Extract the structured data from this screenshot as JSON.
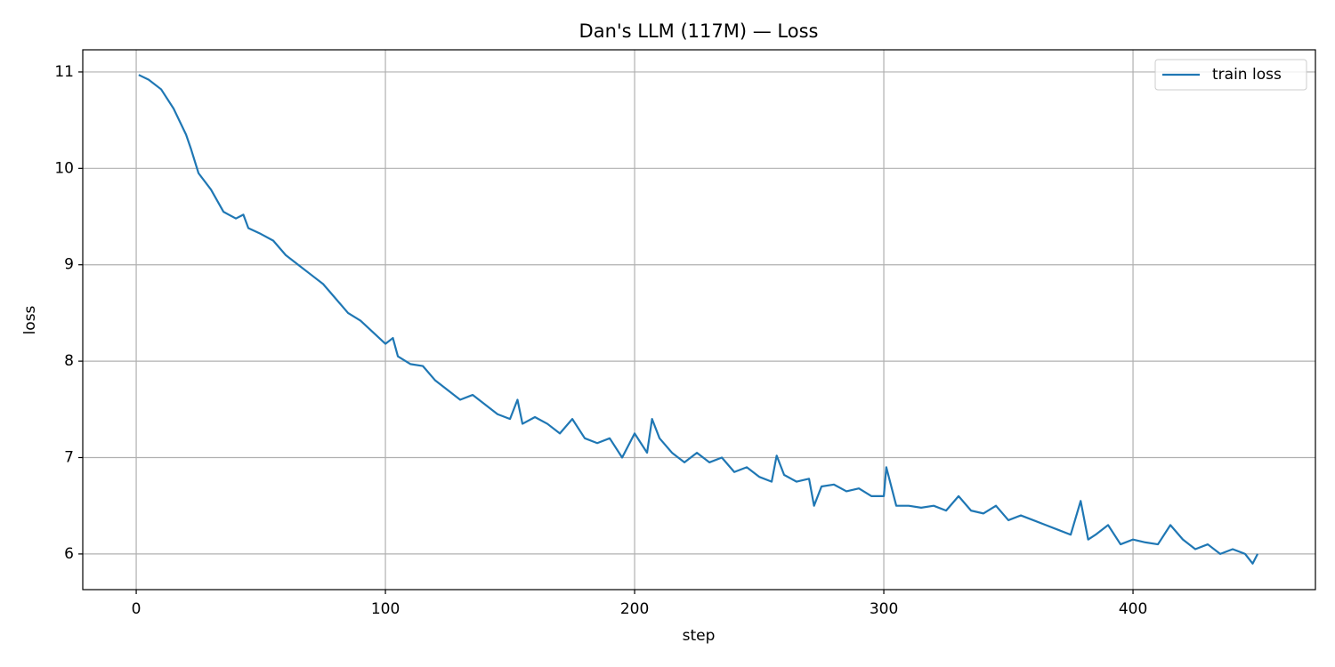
{
  "chart_data": {
    "type": "line",
    "title": "Dan's LLM (117M) — Loss",
    "x_label": "step",
    "y_label": "loss",
    "x": [
      1,
      5,
      10,
      15,
      20,
      22,
      25,
      30,
      35,
      40,
      43,
      45,
      50,
      55,
      60,
      65,
      70,
      75,
      80,
      85,
      90,
      95,
      100,
      103,
      105,
      110,
      115,
      120,
      125,
      130,
      135,
      140,
      145,
      150,
      153,
      155,
      160,
      165,
      170,
      175,
      180,
      185,
      190,
      195,
      200,
      205,
      207,
      210,
      215,
      220,
      225,
      230,
      235,
      240,
      245,
      250,
      255,
      257,
      260,
      265,
      270,
      272,
      275,
      280,
      285,
      290,
      295,
      300,
      301,
      305,
      310,
      315,
      320,
      325,
      330,
      335,
      340,
      345,
      350,
      355,
      360,
      365,
      370,
      375,
      379,
      382,
      385,
      390,
      395,
      400,
      405,
      410,
      415,
      420,
      425,
      430,
      435,
      440,
      445,
      448,
      450
    ],
    "series": [
      {
        "name": "train loss",
        "color": "#1f77b4",
        "values": [
          10.97,
          10.92,
          10.82,
          10.62,
          10.35,
          10.2,
          9.95,
          9.78,
          9.55,
          9.48,
          9.52,
          9.38,
          9.32,
          9.25,
          9.1,
          9.0,
          8.9,
          8.8,
          8.65,
          8.5,
          8.42,
          8.3,
          8.18,
          8.24,
          8.05,
          7.97,
          7.95,
          7.8,
          7.7,
          7.6,
          7.65,
          7.55,
          7.45,
          7.4,
          7.6,
          7.35,
          7.42,
          7.35,
          7.25,
          7.4,
          7.2,
          7.15,
          7.2,
          7.0,
          7.25,
          7.05,
          7.4,
          7.2,
          7.05,
          6.95,
          7.05,
          6.95,
          7.0,
          6.85,
          6.9,
          6.8,
          6.75,
          7.02,
          6.82,
          6.75,
          6.78,
          6.5,
          6.7,
          6.72,
          6.65,
          6.68,
          6.6,
          6.6,
          6.9,
          6.5,
          6.5,
          6.48,
          6.5,
          6.45,
          6.6,
          6.45,
          6.42,
          6.5,
          6.35,
          6.4,
          6.35,
          6.3,
          6.25,
          6.2,
          6.55,
          6.15,
          6.2,
          6.3,
          6.1,
          6.15,
          6.12,
          6.1,
          6.3,
          6.15,
          6.05,
          6.1,
          6.0,
          6.05,
          6.0,
          5.9,
          6.0
        ]
      }
    ],
    "xlim": [
      -21.45,
      473.2
    ],
    "ylim": [
      5.63,
      11.23
    ],
    "xticks": [
      0,
      100,
      200,
      300,
      400
    ],
    "yticks": [
      6,
      7,
      8,
      9,
      10,
      11
    ],
    "grid": true,
    "legend": "upper right"
  }
}
